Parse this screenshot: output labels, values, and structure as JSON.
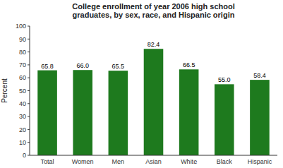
{
  "chart_data": {
    "type": "bar",
    "title": "College enrollment of year 2006 high school\ngraduates, by sex, race, and Hispanic origin",
    "y_label": "Percent",
    "categories": [
      "Total",
      "Women",
      "Men",
      "Asian",
      "White",
      "Black",
      "Hispanic"
    ],
    "values": [
      65.8,
      66.0,
      65.5,
      82.4,
      66.5,
      55.0,
      58.4
    ],
    "value_labels": [
      "65.8",
      "66.0",
      "65.5",
      "82.4",
      "66.5",
      "55.0",
      "58.4"
    ],
    "color": "#1e7a1e",
    "ylim": [
      0,
      100
    ],
    "yticks": [
      0,
      10,
      20,
      30,
      40,
      50,
      60,
      70,
      80,
      90,
      100
    ],
    "grid": false,
    "data_labels": true
  }
}
